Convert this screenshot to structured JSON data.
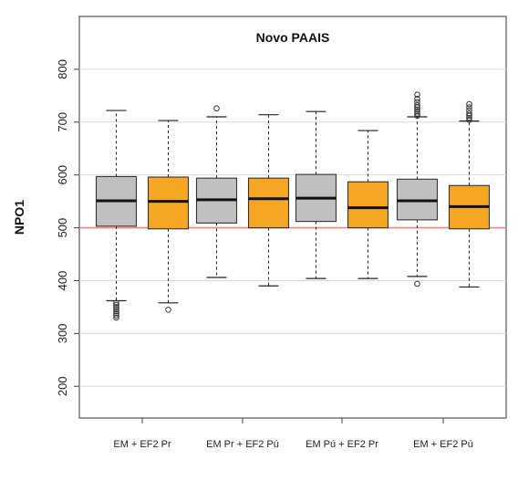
{
  "chart_data": {
    "type": "boxplot",
    "title": "Novo PAAIS",
    "xlabel": "",
    "ylabel": "NPO1",
    "ylim": [
      140,
      900
    ],
    "yticks": [
      200,
      300,
      400,
      500,
      600,
      700,
      800
    ],
    "grid": true,
    "reference_line": {
      "value": 500,
      "color": "#f08a80"
    },
    "categories": [
      "EM + EF2 Pr",
      "EM Pr + EF2 Pú",
      "EM Pú + EF2 Pr",
      "EM + EF2 Pú"
    ],
    "colors": {
      "grey": "#c0c0c0",
      "orange": "#f5a623"
    },
    "boxes": [
      {
        "category": 0,
        "color": "grey",
        "whisker_low": 362,
        "q1": 503,
        "median": 551,
        "q3": 597,
        "whisker_high": 722,
        "outliers": [
          330,
          334,
          338,
          342,
          346,
          350,
          354,
          358
        ]
      },
      {
        "category": 0,
        "color": "orange",
        "whisker_low": 358,
        "q1": 498,
        "median": 550,
        "q3": 596,
        "whisker_high": 703,
        "outliers": [
          345
        ]
      },
      {
        "category": 1,
        "color": "grey",
        "whisker_low": 406,
        "q1": 509,
        "median": 553,
        "q3": 594,
        "whisker_high": 710,
        "outliers": [
          726
        ]
      },
      {
        "category": 1,
        "color": "orange",
        "whisker_low": 390,
        "q1": 500,
        "median": 555,
        "q3": 594,
        "whisker_high": 714,
        "outliers": []
      },
      {
        "category": 2,
        "color": "grey",
        "whisker_low": 404,
        "q1": 512,
        "median": 556,
        "q3": 601,
        "whisker_high": 720,
        "outliers": []
      },
      {
        "category": 2,
        "color": "orange",
        "whisker_low": 404,
        "q1": 500,
        "median": 538,
        "q3": 587,
        "whisker_high": 684,
        "outliers": []
      },
      {
        "category": 3,
        "color": "grey",
        "whisker_low": 408,
        "q1": 515,
        "median": 551,
        "q3": 592,
        "whisker_high": 710,
        "outliers": [
          394,
          712,
          716,
          720,
          724,
          728,
          732,
          738,
          744,
          752
        ]
      },
      {
        "category": 3,
        "color": "orange",
        "whisker_low": 388,
        "q1": 498,
        "median": 540,
        "q3": 580,
        "whisker_high": 702,
        "outliers": [
          704,
          708,
          712,
          716,
          722,
          728,
          734
        ]
      }
    ]
  }
}
